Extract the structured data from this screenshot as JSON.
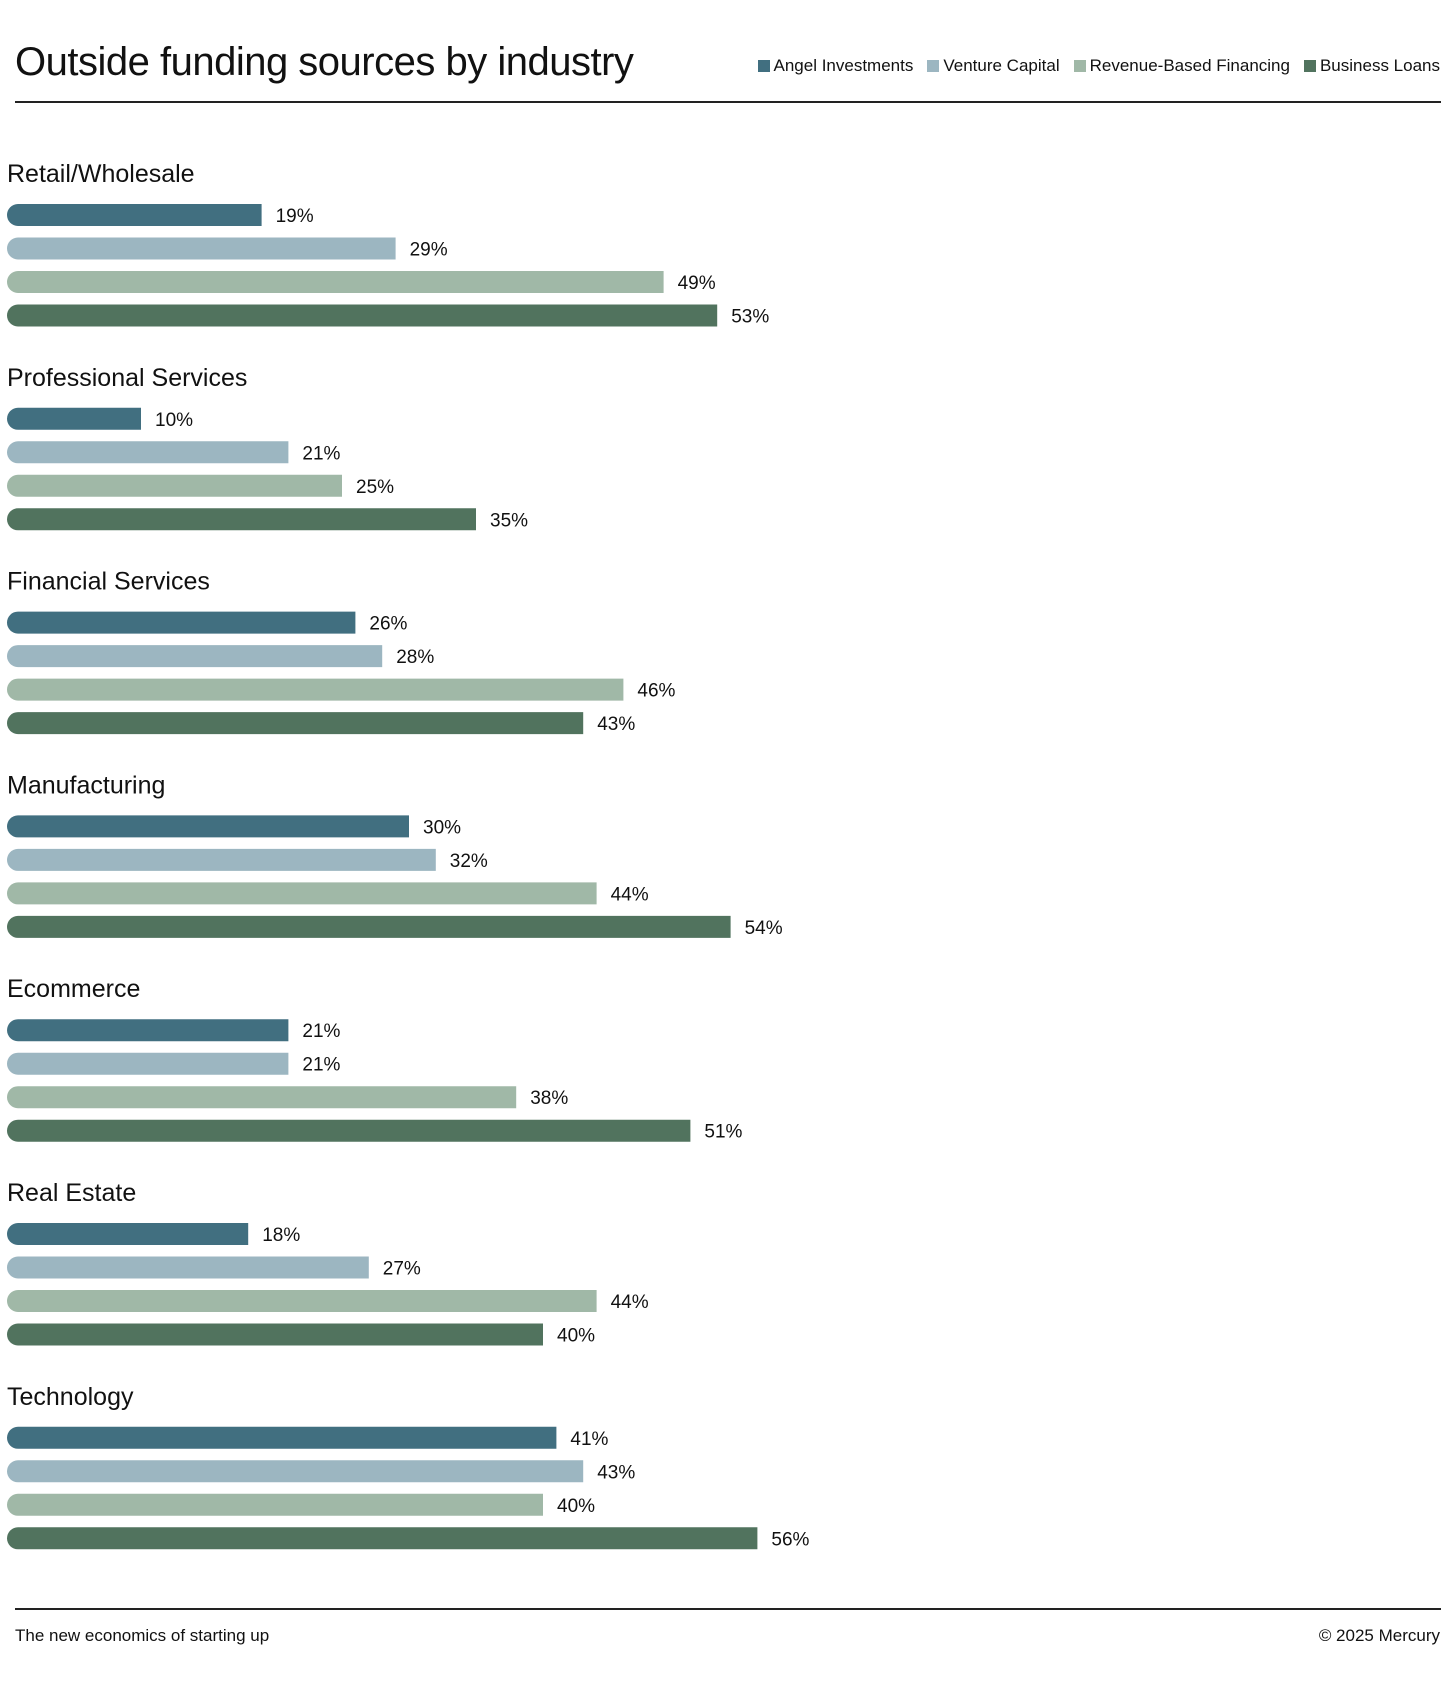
{
  "chart_data": {
    "type": "bar",
    "orientation": "horizontal",
    "title": "Outside funding sources by industry",
    "unit": "%",
    "xlim": [
      0,
      100
    ],
    "grid": false,
    "legend_position": "top-right",
    "categories": [
      "Retail/Wholesale",
      "Professional Services",
      "Financial Services",
      "Manufacturing",
      "Ecommerce",
      "Real Estate",
      "Technology"
    ],
    "series": [
      {
        "name": "Angel Investments",
        "color": "#416f80",
        "values": [
          19,
          10,
          26,
          30,
          21,
          18,
          41
        ]
      },
      {
        "name": "Venture Capital",
        "color": "#9cb6c1",
        "values": [
          29,
          21,
          28,
          32,
          21,
          27,
          43
        ]
      },
      {
        "name": "Revenue-Based Financing",
        "color": "#a0b8a7",
        "values": [
          49,
          25,
          46,
          44,
          38,
          44,
          40
        ]
      },
      {
        "name": "Business Loans",
        "color": "#51735e",
        "values": [
          53,
          35,
          43,
          54,
          51,
          40,
          56
        ]
      }
    ]
  },
  "footer": {
    "left": "The new economics of starting up",
    "right": "© 2025 Mercury"
  }
}
